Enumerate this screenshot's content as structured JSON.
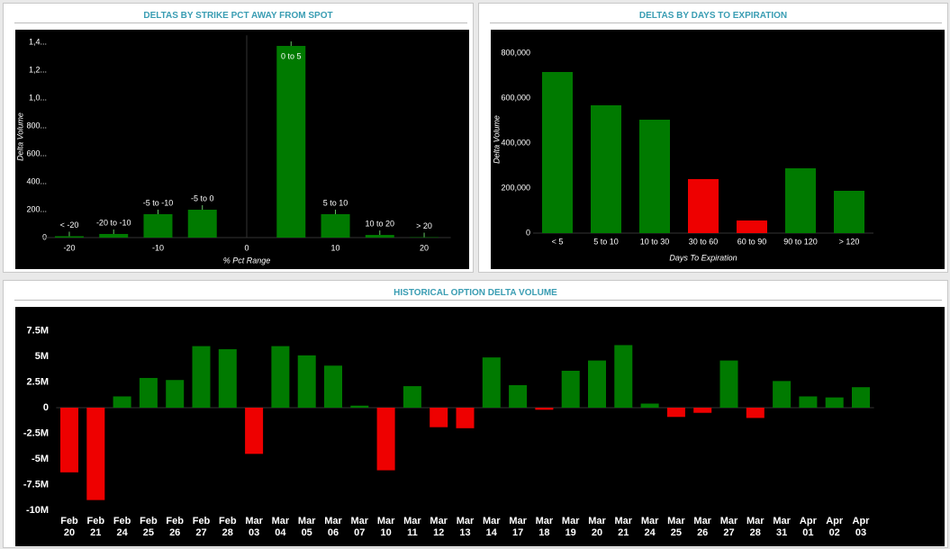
{
  "chart_data": [
    {
      "type": "bar",
      "title": "DELTAS BY STRIKE PCT AWAY FROM SPOT",
      "x_label": "% Pct Range",
      "y_label": "Delta Volume",
      "x": [
        -20,
        -15,
        -10,
        -5,
        5,
        10,
        15,
        20
      ],
      "labels": [
        "< -20",
        "-20 to -10",
        "-5 to -10",
        "-5 to 0",
        "0 to 5",
        "5 to 10",
        "10 to 20",
        "> 20"
      ],
      "values": [
        10000,
        26000,
        168000,
        200000,
        1374000,
        168000,
        19000,
        3000
      ],
      "color": "#007a00",
      "label_color": "#66c266",
      "xlim": [
        -23,
        23
      ],
      "xticks": [
        -20,
        -10,
        0,
        10,
        20
      ],
      "ylim": [
        0,
        1450000
      ],
      "yticks": [
        0,
        {
          "value": 200000,
          "label": "200..."
        },
        {
          "value": 400000,
          "label": "400..."
        },
        {
          "value": 600000,
          "label": "600..."
        },
        {
          "value": 800000,
          "label": "800..."
        },
        {
          "value": 1000000,
          "label": "1,0..."
        },
        {
          "value": 1200000,
          "label": "1,2..."
        },
        {
          "value": 1400000,
          "label": "1,4..."
        }
      ]
    },
    {
      "type": "bar",
      "title": "DELTAS BY DAYS TO EXPIRATION",
      "x_label": "Days To Expiration",
      "y_label": "Delta Volume",
      "categories": [
        "< 5",
        "5 to 10",
        "10 to 30",
        "30 to 60",
        "60 to 90",
        "90 to 120",
        "> 120"
      ],
      "values": [
        716000,
        568000,
        504000,
        240000,
        56000,
        288000,
        188000
      ],
      "colors": [
        "#007a00",
        "#007a00",
        "#007a00",
        "#ee0000",
        "#ee0000",
        "#007a00",
        "#007a00"
      ],
      "ylim": [
        0,
        860000
      ],
      "yticks": [
        0,
        {
          "value": 200000,
          "label": "200,000"
        },
        {
          "value": 400000,
          "label": "400,000"
        },
        {
          "value": 600000,
          "label": "600,000"
        },
        {
          "value": 800000,
          "label": "800,000"
        }
      ]
    },
    {
      "type": "bar",
      "title": "HISTORICAL OPTION DELTA VOLUME",
      "categories": [
        "Feb 20",
        "Feb 21",
        "Feb 24",
        "Feb 25",
        "Feb 26",
        "Feb 27",
        "Feb 28",
        "Mar 03",
        "Mar 04",
        "Mar 05",
        "Mar 06",
        "Mar 07",
        "Mar 10",
        "Mar 11",
        "Mar 12",
        "Mar 13",
        "Mar 14",
        "Mar 17",
        "Mar 18",
        "Mar 19",
        "Mar 20",
        "Mar 21",
        "Mar 24",
        "Mar 25",
        "Mar 26",
        "Mar 27",
        "Mar 28",
        "Mar 31",
        "Apr 01",
        "Apr 02",
        "Apr 03"
      ],
      "values": [
        -6300000,
        -9000000,
        1100000,
        2900000,
        2700000,
        6000000,
        5700000,
        -4500000,
        6000000,
        5100000,
        4100000,
        200000,
        -6100000,
        2100000,
        -1900000,
        -2000000,
        4900000,
        2200000,
        -200000,
        3600000,
        4600000,
        6100000,
        400000,
        -900000,
        -500000,
        4600000,
        -1000000,
        2600000,
        1100000,
        1000000,
        2000000
      ],
      "positive_color": "#007a00",
      "negative_color": "#ee0000",
      "ylim": [
        -10700000,
        9000000
      ],
      "yticks": [
        {
          "value": -10000000,
          "label": "-10M"
        },
        {
          "value": -7500000,
          "label": "-7.5M"
        },
        {
          "value": -5000000,
          "label": "-5M"
        },
        {
          "value": -2500000,
          "label": "-2.5M"
        },
        0,
        {
          "value": 2500000,
          "label": "2.5M"
        },
        {
          "value": 5000000,
          "label": "5M"
        },
        {
          "value": 7500000,
          "label": "7.5M"
        }
      ]
    }
  ]
}
